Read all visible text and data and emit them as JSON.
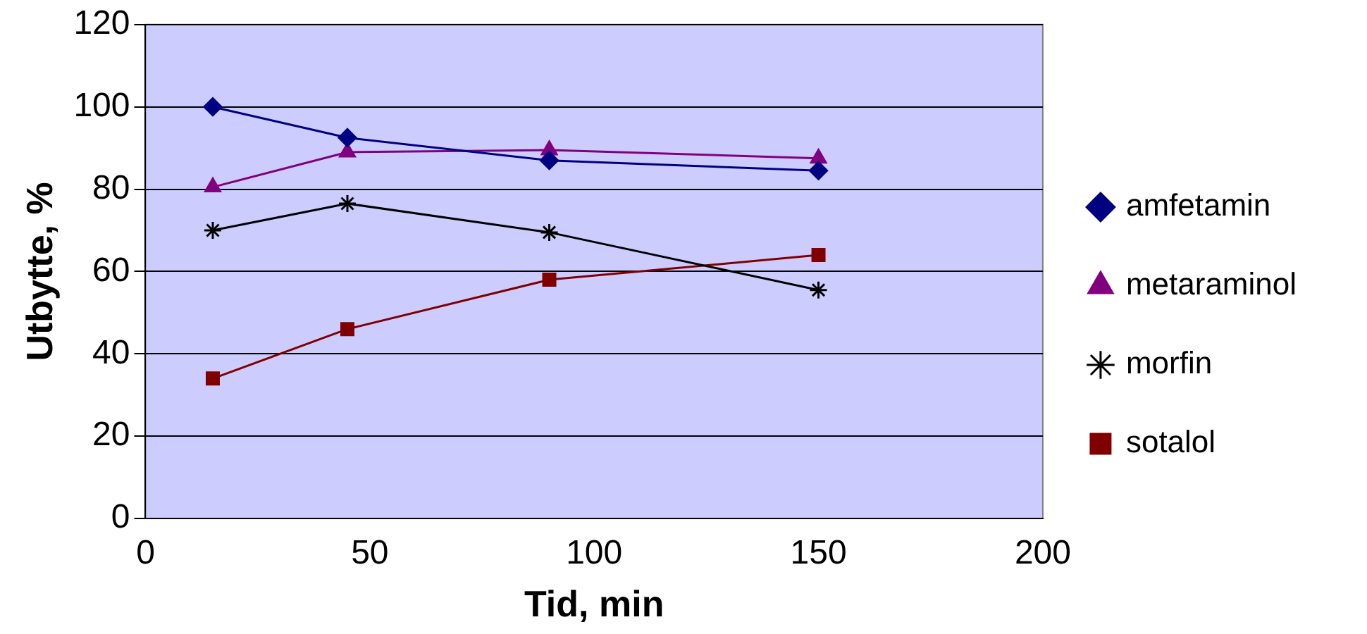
{
  "chart_data": {
    "type": "line",
    "xlabel": "Tid, min",
    "ylabel": "Utbytte, %",
    "x": [
      15,
      45,
      90,
      150
    ],
    "series": [
      {
        "name": "amfetamin",
        "color": "#000080",
        "marker": "diamond",
        "values": [
          100,
          92.5,
          87,
          84.5
        ]
      },
      {
        "name": "metaraminol",
        "color": "#800080",
        "marker": "triangle",
        "values": [
          80.5,
          89,
          89.5,
          87.5
        ]
      },
      {
        "name": "morfin",
        "color": "#000000",
        "marker": "cross",
        "values": [
          70,
          76.5,
          69.5,
          55.5
        ]
      },
      {
        "name": "sotalol",
        "color": "#800000",
        "marker": "square",
        "values": [
          34,
          46,
          58,
          64
        ]
      }
    ],
    "xlim": [
      0,
      200
    ],
    "xticks": [
      0,
      50,
      100,
      150,
      200
    ],
    "ylim": [
      0,
      120
    ],
    "yticks": [
      0,
      20,
      40,
      60,
      80,
      100,
      120
    ],
    "grid": "y",
    "legend": "right",
    "line_style": "solid"
  }
}
